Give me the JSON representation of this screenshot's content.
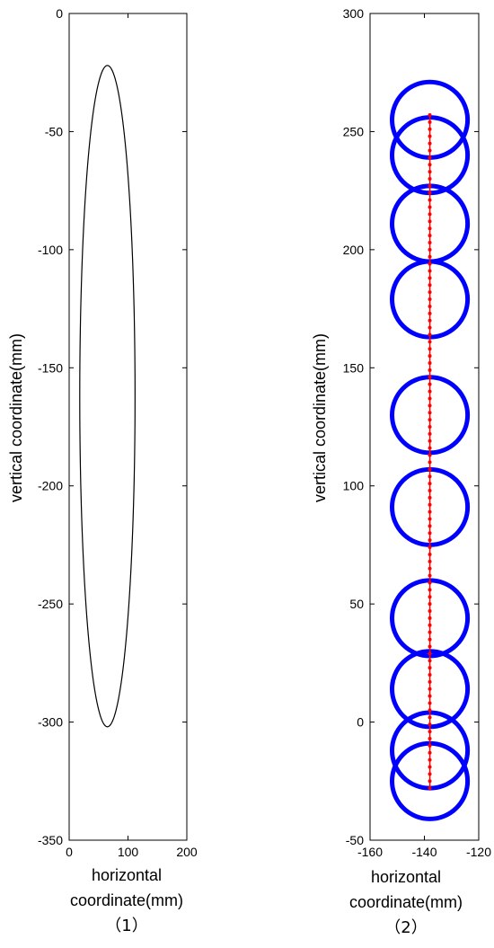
{
  "chart_data": [
    {
      "type": "line",
      "panel_label": "（1）",
      "xlabel_lines": [
        "horizontal",
        "coordinate(mm)"
      ],
      "ylabel": "vertical coordinate(mm)",
      "xlim": [
        0,
        200
      ],
      "ylim": [
        -350,
        0
      ],
      "xticks": [
        0,
        100,
        200
      ],
      "yticks": [
        0,
        -50,
        -100,
        -150,
        -200,
        -250,
        -300,
        -350
      ],
      "xtick_labels": [
        "0",
        "100",
        "200"
      ],
      "ytick_labels": [
        "0",
        "-50",
        "-100",
        "-150",
        "-200",
        "-250",
        "-300",
        "-350"
      ],
      "grid": false,
      "series": [
        {
          "shape": "ellipse",
          "color": "#000000",
          "center_x": 65,
          "center_y": -162,
          "radius_x": 47,
          "radius_y": 140
        }
      ]
    },
    {
      "type": "scatter",
      "panel_label": "（2）",
      "xlabel_lines": [
        "horizontal",
        "coordinate(mm)"
      ],
      "ylabel": "vertical coordinate(mm)",
      "xlim": [
        -160,
        -120
      ],
      "ylim": [
        -50,
        300
      ],
      "xticks": [
        -160,
        -140,
        -120
      ],
      "yticks": [
        300,
        250,
        200,
        150,
        100,
        50,
        0,
        -50
      ],
      "xtick_labels": [
        "-160",
        "-140",
        "-120"
      ],
      "ytick_labels": [
        "300",
        "250",
        "200",
        "150",
        "100",
        "50",
        "0",
        "-50"
      ],
      "grid": false,
      "circles": {
        "color": "#0000ff",
        "center_x": -138,
        "radius": 16,
        "centers_y": [
          255,
          240,
          211,
          179,
          130,
          91,
          44,
          14,
          -12,
          -25
        ]
      },
      "points": {
        "color": "#ff0000",
        "x": -138,
        "y_from": -28,
        "y_to": 257,
        "step": 3
      }
    }
  ]
}
